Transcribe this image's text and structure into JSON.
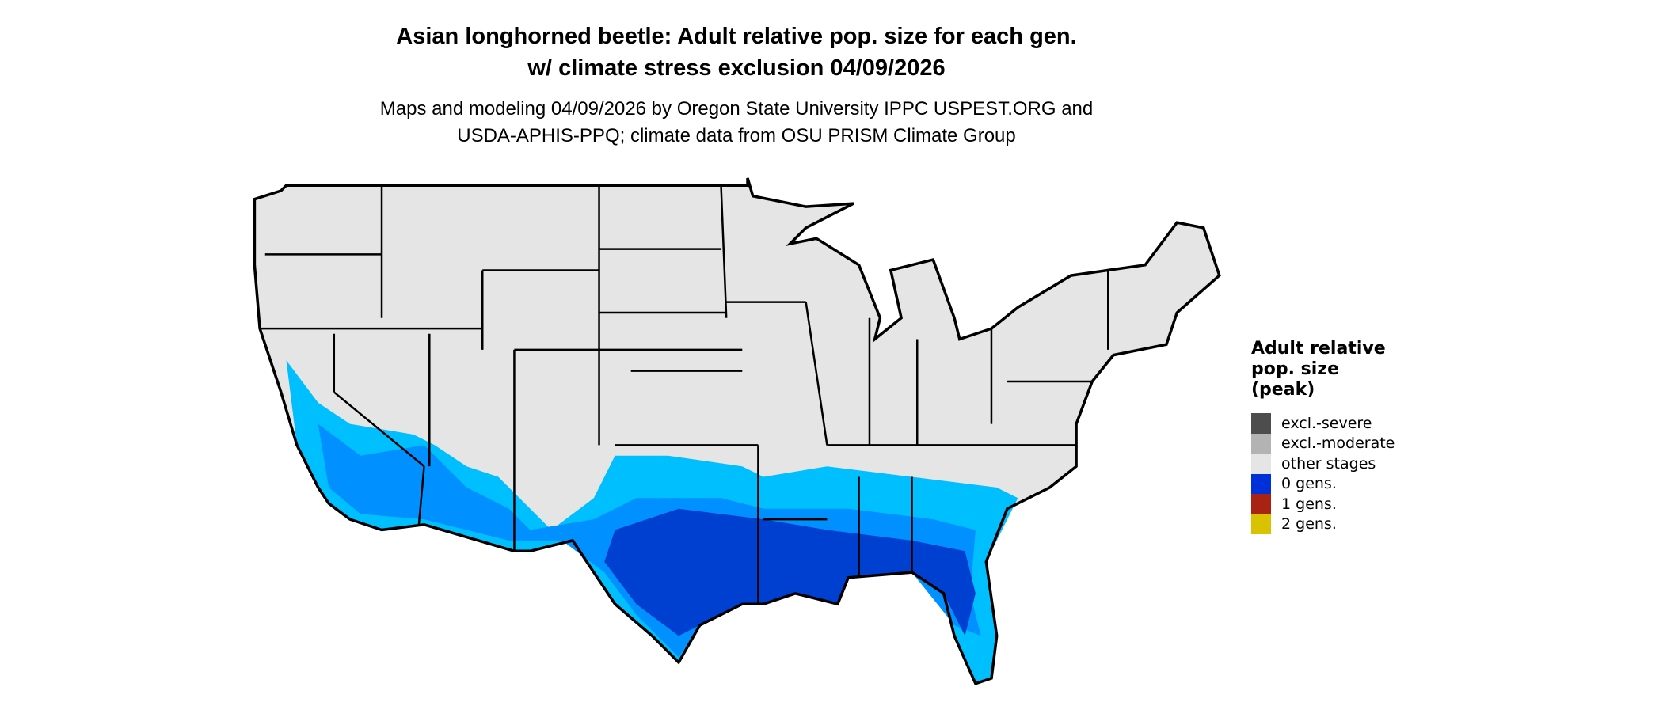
{
  "title_line1": "Asian longhorned beetle: Adult relative pop. size for each gen.",
  "title_line2": "w/ climate stress exclusion 04/09/2026",
  "subtitle_line1": "Maps and modeling 04/09/2026 by Oregon State University IPPC USPEST.ORG and",
  "subtitle_line2": "USDA-APHIS-PPQ; climate data from OSU PRISM Climate Group",
  "legend": {
    "title_lines": [
      "Adult relative",
      "pop. size",
      "(peak)"
    ],
    "items": [
      {
        "label": "excl.-severe",
        "color": "#4d4d4d"
      },
      {
        "label": "excl.-moderate",
        "color": "#b3b3b3"
      },
      {
        "label": "other stages",
        "color": "#e5e5e5"
      },
      {
        "label": "0 gens.",
        "color": "#0030d8"
      },
      {
        "label": "1 gens.",
        "color": "#a82313"
      },
      {
        "label": "2 gens.",
        "color": "#d9c200"
      }
    ]
  },
  "map_colors": {
    "base": "#e5e5e5",
    "light_blue": "#00bfff",
    "mid_blue": "#0090ff",
    "dark_blue": "#0040d0",
    "border": "#000000"
  }
}
